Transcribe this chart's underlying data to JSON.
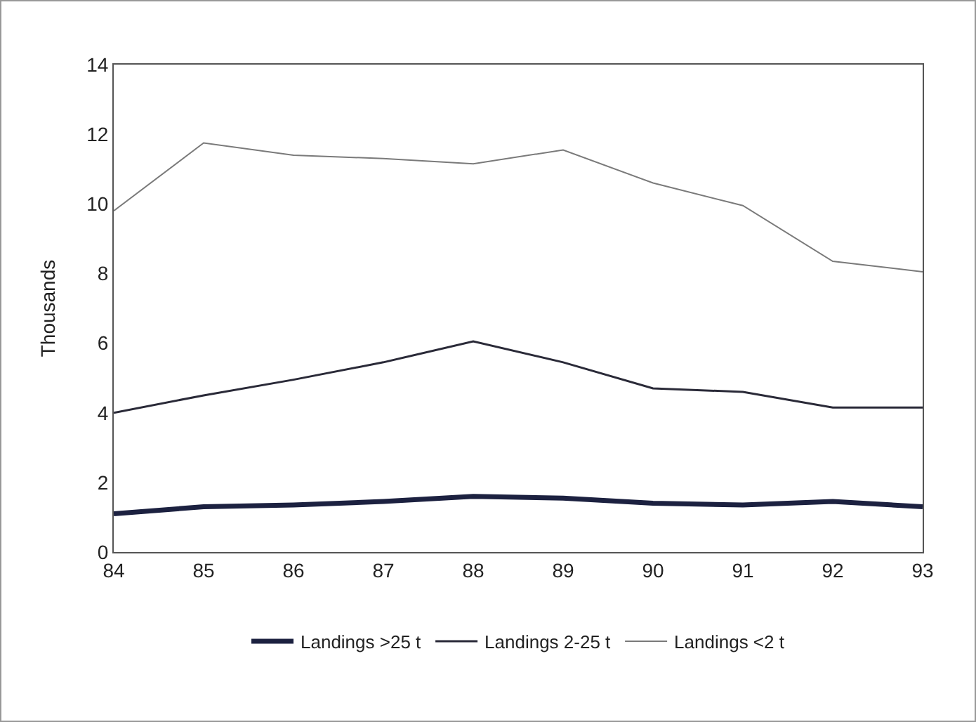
{
  "chart_data": {
    "type": "line",
    "ylabel": "Thousands",
    "categories": [
      "84",
      "85",
      "86",
      "87",
      "88",
      "89",
      "90",
      "91",
      "92",
      "93"
    ],
    "series": [
      {
        "name": "Landings >25 t",
        "color": "#1c2140",
        "values": [
          1.1,
          1.3,
          1.35,
          1.45,
          1.6,
          1.55,
          1.4,
          1.35,
          1.45,
          1.3
        ]
      },
      {
        "name": "Landings 2-25 t",
        "color": "#2a2a38",
        "values": [
          4.0,
          4.5,
          4.95,
          5.45,
          6.05,
          5.45,
          4.7,
          4.6,
          4.15,
          4.15
        ]
      },
      {
        "name": "Landings <2 t",
        "color": "#7a7a7a",
        "values": [
          9.8,
          11.75,
          11.4,
          11.3,
          11.15,
          11.55,
          10.6,
          9.95,
          8.35,
          8.05
        ]
      }
    ],
    "ylim": [
      0,
      14
    ],
    "yticks": [
      0,
      2,
      4,
      6,
      8,
      10,
      12,
      14
    ],
    "grid": false,
    "legend": "bottom",
    "marker": "none",
    "line_style": "solid"
  }
}
